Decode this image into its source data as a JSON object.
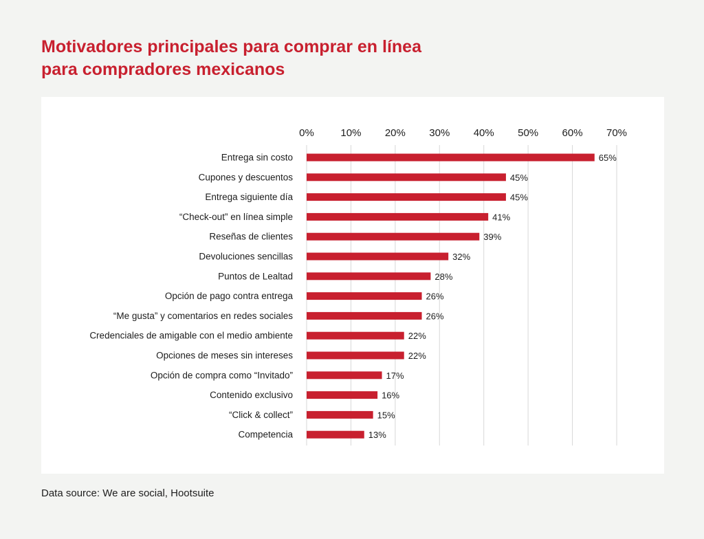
{
  "header": {
    "title": "Motivadores principales para comprar en línea para compradores mexicanos"
  },
  "footer": {
    "source": "Data source: We are social, Hootsuite"
  },
  "colors": {
    "bar": "#c8202f",
    "title": "#c8202f",
    "grid": "#d7d7d7",
    "text": "#1d1d1d",
    "background": "#f3f4f2",
    "panel": "#ffffff"
  },
  "chart_data": {
    "type": "bar",
    "orientation": "horizontal",
    "title": "Motivadores principales para comprar en línea para compradores mexicanos",
    "xlabel": "",
    "ylabel": "",
    "xlim": [
      0,
      70
    ],
    "ticks": [
      0,
      10,
      20,
      30,
      40,
      50,
      60,
      70
    ],
    "tick_labels": [
      "0%",
      "10%",
      "20%",
      "30%",
      "40%",
      "50%",
      "60%",
      "70%"
    ],
    "axis_position": "top",
    "grid": true,
    "categories": [
      "Entrega sin costo",
      "Cupones y descuentos",
      "Entrega siguiente día",
      "“Check-out” en línea simple",
      "Reseñas de clientes",
      "Devoluciones sencillas",
      "Puntos de Lealtad",
      "Opción de pago contra entrega",
      "“Me gusta” y comentarios en redes sociales",
      "Credenciales de amigable con el medio ambiente",
      "Opciones de meses sin intereses",
      "Opción de compra como “Invitado”",
      "Contenido exclusivo",
      "“Click & collect”",
      "Competencia"
    ],
    "values": [
      65,
      45,
      45,
      41,
      39,
      32,
      28,
      26,
      26,
      22,
      22,
      17,
      16,
      15,
      13
    ],
    "value_labels": [
      "65%",
      "45%",
      "45%",
      "41%",
      "39%",
      "32%",
      "28%",
      "26%",
      "26%",
      "22%",
      "22%",
      "17%",
      "16%",
      "15%",
      "13%"
    ]
  }
}
